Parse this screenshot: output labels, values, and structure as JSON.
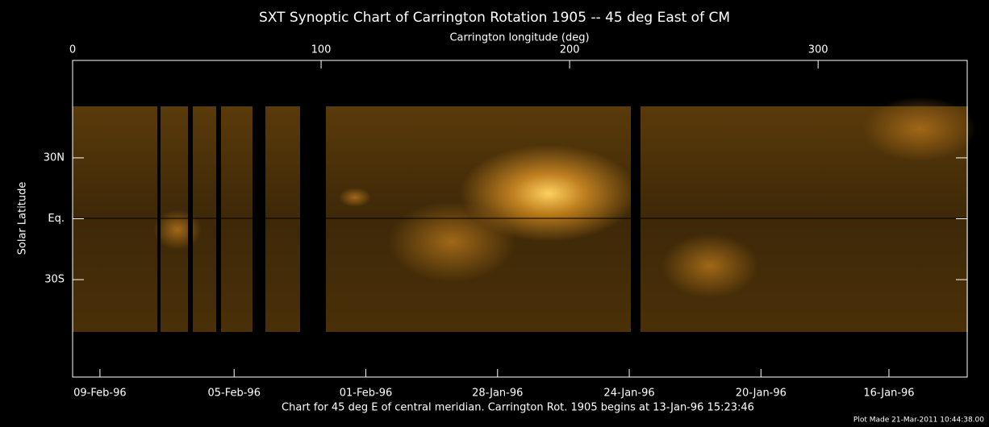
{
  "chart_data": {
    "type": "image",
    "title": "SXT Synoptic Chart of Carrington Rotation 1905 -- 45 deg East of CM",
    "xlabel": "Carrington longitude (deg)",
    "ylabel": "Solar Latitude",
    "xlim": [
      0,
      360
    ],
    "xticks": [
      0,
      100,
      200,
      300
    ],
    "ylim": [
      -78,
      78
    ],
    "yticks": [
      {
        "value": 30,
        "label": "30N"
      },
      {
        "value": 0,
        "label": "Eq."
      },
      {
        "value": -30,
        "label": "30S"
      }
    ],
    "bottom_xticks": [
      {
        "value": 11,
        "label": "09-Feb-96"
      },
      {
        "value": 65,
        "label": "05-Feb-96"
      },
      {
        "value": 118,
        "label": "01-Feb-96"
      },
      {
        "value": 171,
        "label": "28-Jan-96"
      },
      {
        "value": 224,
        "label": "24-Jan-96"
      },
      {
        "value": 277,
        "label": "20-Jan-96"
      },
      {
        "value": 328.5,
        "label": "16-Jan-96"
      }
    ],
    "caption": "Chart for 45 deg E of central meridian.  Carrington Rot. 1905 begins at 13-Jan-96 15:23:46",
    "footnote": "Plot Made 21-Mar-2011 10:44:38.00"
  }
}
